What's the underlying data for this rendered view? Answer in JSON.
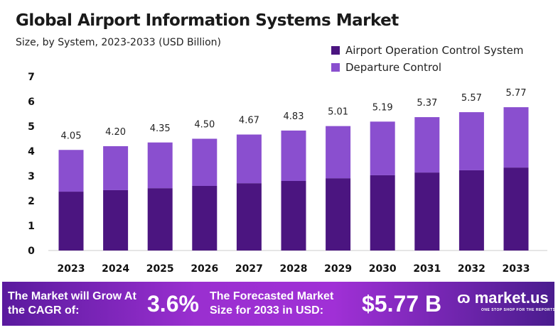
{
  "chart_data": {
    "type": "bar",
    "stacked": true,
    "title": "Global Airport Information Systems Market",
    "subtitle": "Size, by System, 2023-2033 (USD Billion)",
    "categories": [
      "2023",
      "2024",
      "2025",
      "2026",
      "2027",
      "2028",
      "2029",
      "2030",
      "2031",
      "2032",
      "2033"
    ],
    "series": [
      {
        "name": "Airport Operation Control System",
        "color": "#4b1580",
        "values": [
          2.37,
          2.43,
          2.51,
          2.6,
          2.71,
          2.8,
          2.91,
          3.03,
          3.14,
          3.23,
          3.34
        ]
      },
      {
        "name": "Departure Control",
        "color": "#8a4fcf",
        "values": [
          1.68,
          1.77,
          1.84,
          1.9,
          1.96,
          2.03,
          2.1,
          2.16,
          2.23,
          2.34,
          2.43
        ]
      }
    ],
    "totals": [
      "4.05",
      "4.20",
      "4.35",
      "4.50",
      "4.67",
      "4.83",
      "5.01",
      "5.19",
      "5.37",
      "5.57",
      "5.77"
    ],
    "yticks": [
      "0",
      "1",
      "2",
      "3",
      "4",
      "5",
      "6",
      "7"
    ],
    "ylim": [
      0,
      7
    ],
    "grid": false,
    "legend": "top-right"
  },
  "banner": {
    "cagr_label": "The Market will Grow At the CAGR of:",
    "cagr_value": "3.6%",
    "forecast_label": "The Forecasted Market Size for 2033 in USD:",
    "forecast_value": "$5.77 B",
    "logo_text": "market.us",
    "logo_tagline": "ONE STOP SHOP FOR THE REPORTS"
  }
}
